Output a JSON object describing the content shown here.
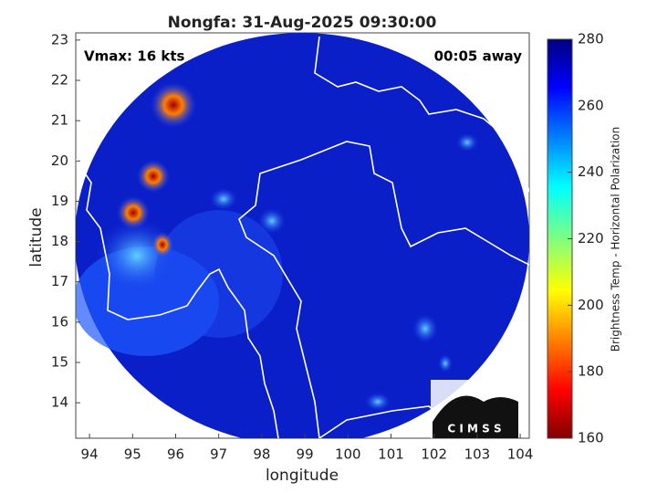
{
  "chart_data": {
    "type": "heatmap",
    "title": "Nongfa: 31-Aug-2025 09:30:00",
    "x_label": "longitude",
    "y_label": "latitude",
    "xlim": [
      93.68,
      104.21
    ],
    "xticks": [
      94,
      95,
      96,
      97,
      98,
      99,
      100,
      101,
      102,
      103,
      104
    ],
    "ylim": [
      13.12,
      23.02
    ],
    "yticks": [
      14,
      15,
      16,
      17,
      18,
      19,
      20,
      21,
      22,
      23
    ],
    "colorbar": {
      "label": "Brightness Temp - Horizontal Polarization",
      "lim": [
        160,
        280
      ],
      "ticks": [
        160,
        180,
        200,
        220,
        240,
        260,
        280
      ]
    },
    "annotations": [
      "Vmax: 16 kts",
      "00:05 away"
    ],
    "logo": "C I M S S"
  }
}
